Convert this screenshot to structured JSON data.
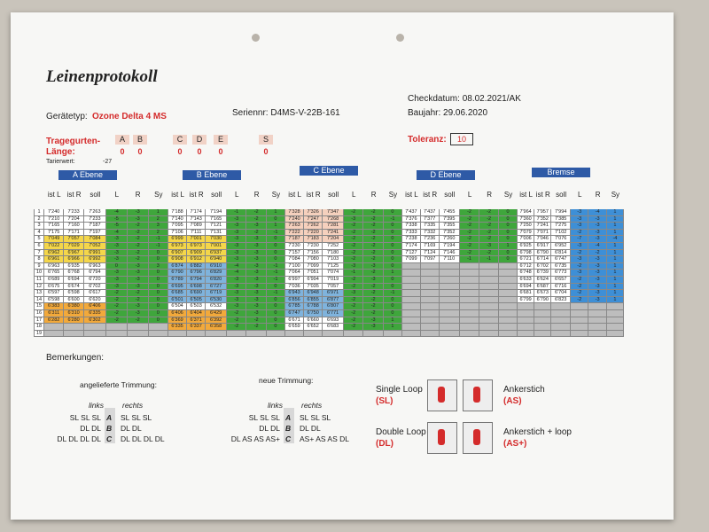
{
  "header": {
    "title": "Leinenprotokoll",
    "checkdatum": "Checkdatum: 08.02.2021/AK",
    "geraetetyp_label": "Gerätetyp:",
    "geraetetyp": "Ozone Delta 4 MS",
    "seriennr": "Seriennr: D4MS-V-22B-161",
    "baujahr": "Baujahr: 29.06.2020"
  },
  "risers": {
    "label1": "Tragegurten-",
    "label2": "Länge:",
    "tarierwert_label": "Tarierwert:",
    "tarierwert": "-27",
    "letters": [
      "A",
      "B",
      "C",
      "D",
      "E",
      "S"
    ],
    "values": [
      "0",
      "0",
      "0",
      "0",
      "0",
      "0"
    ],
    "toleranz_label": "Toleranz:",
    "toleranz": "10"
  },
  "table": {
    "columns": [
      "ist L",
      "ist R",
      "soll",
      "L",
      "R",
      "Sy"
    ],
    "row_numbers": [
      "1",
      "2",
      "3",
      "4",
      "5",
      "6",
      "7",
      "8",
      "9",
      "10",
      "11",
      "12",
      "13",
      "14",
      "15",
      "16",
      "17",
      "18",
      "19"
    ],
    "blocks": [
      {
        "title": "A Ebene",
        "rows": [
          [
            "7'240",
            "7'233",
            "7'263",
            "-4",
            "-3",
            "1"
          ],
          [
            "7'210",
            "7'204",
            "7'233",
            "-5",
            "-3",
            "2"
          ],
          [
            "7'165",
            "7'160",
            "7'187",
            "-5",
            "-2",
            "3"
          ],
          [
            "7'175",
            "7'171",
            "7'197",
            "-4",
            "-2",
            "2"
          ],
          [
            "7'049",
            "7'057",
            "7'084",
            "-3",
            "-2",
            "-1"
          ],
          [
            "7'022",
            "7'029",
            "7'052",
            "-3",
            "-2",
            "-1"
          ],
          [
            "6'962",
            "6'967",
            "6'991",
            "-3",
            "-2",
            "0"
          ],
          [
            "6'961",
            "6'966",
            "6'992",
            "-3",
            "-2",
            "0"
          ],
          [
            "6'963",
            "6'935",
            "6'963",
            "0",
            "-3",
            "3"
          ],
          [
            "6'765",
            "6'768",
            "6'794",
            "-3",
            "-3",
            "0"
          ],
          [
            "6'689",
            "6'694",
            "6'720",
            "-3",
            "-3",
            "0"
          ],
          [
            "6'675",
            "6'674",
            "6'702",
            "-3",
            "-3",
            "0"
          ],
          [
            "6'597",
            "6'598",
            "6'617",
            "-2",
            "-2",
            "0"
          ],
          [
            "6'598",
            "6'600",
            "6'620",
            "-2",
            "-2",
            "0"
          ],
          [
            "6'383",
            "6'380",
            "6'406",
            "-2",
            "-3",
            "0"
          ],
          [
            "6'311",
            "6'310",
            "6'335",
            "-2",
            "-3",
            "0"
          ],
          [
            "6'282",
            "6'280",
            "6'302",
            "-2",
            "-2",
            "0"
          ]
        ]
      },
      {
        "title": "B Ebene",
        "rows": [
          [
            "7'188",
            "7'174",
            "7'194",
            "-1",
            "-2",
            "1"
          ],
          [
            "7'140",
            "7'143",
            "7'165",
            "-3",
            "-2",
            "0"
          ],
          [
            "7'095",
            "7'089",
            "7'121",
            "-3",
            "-3",
            "1"
          ],
          [
            "7'106",
            "7'111",
            "7'131",
            "-3",
            "-2",
            "-1"
          ],
          [
            "6'999",
            "7'001",
            "7'030",
            "-3",
            "-3",
            "0"
          ],
          [
            "6'973",
            "6'973",
            "7'001",
            "-3",
            "-3",
            "0"
          ],
          [
            "6'907",
            "6'909",
            "6'937",
            "-3",
            "-3",
            "0"
          ],
          [
            "6'908",
            "6'912",
            "6'940",
            "-3",
            "-3",
            "0"
          ],
          [
            "6'874",
            "6'882",
            "6'910",
            "-4",
            "-3",
            "-1"
          ],
          [
            "6'790",
            "6'796",
            "6'829",
            "-4",
            "-3",
            "-1"
          ],
          [
            "6'789",
            "6'794",
            "6'820",
            "-3",
            "-3",
            "-1"
          ],
          [
            "6'695",
            "6'698",
            "6'727",
            "-3",
            "-3",
            "0"
          ],
          [
            "6'685",
            "6'690",
            "6'719",
            "-3",
            "-3",
            "-1"
          ],
          [
            "6'501",
            "6'505",
            "6'530",
            "-3",
            "-3",
            "0"
          ],
          [
            "6'504",
            "6'503",
            "6'532",
            "-3",
            "-3",
            "0"
          ],
          [
            "6'406",
            "6'404",
            "6'429",
            "-2",
            "-3",
            "0"
          ],
          [
            "6'369",
            "6'371",
            "6'392",
            "-2",
            "-2",
            "0"
          ],
          [
            "6'335",
            "6'337",
            "6'358",
            "-2",
            "-2",
            "0"
          ]
        ]
      },
      {
        "title": "C Ebene",
        "rows": [
          [
            "7'328",
            "7'326",
            "7'347",
            "-2",
            "-2",
            "0"
          ],
          [
            "7'240",
            "7'247",
            "7'268",
            "-3",
            "-2",
            "-1"
          ],
          [
            "7'263",
            "7'262",
            "7'281",
            "-2",
            "-2",
            "0"
          ],
          [
            "7'222",
            "7'220",
            "7'241",
            "-2",
            "-2",
            "0"
          ],
          [
            "7'187",
            "7'183",
            "7'204",
            "-2",
            "-2",
            "0"
          ],
          [
            "7'230",
            "7'230",
            "7'252",
            "-2",
            "-2",
            "0"
          ],
          [
            "7'157",
            "7'156",
            "7'180",
            "-2",
            "-2",
            "0"
          ],
          [
            "7'084",
            "7'080",
            "7'103",
            "-2",
            "-2",
            "0"
          ],
          [
            "7'100",
            "7'099",
            "7'125",
            "-3",
            "-3",
            "0"
          ],
          [
            "7'064",
            "7'051",
            "7'074",
            "-1",
            "-2",
            "1"
          ],
          [
            "6'997",
            "6'994",
            "7'019",
            "-2",
            "-3",
            "0"
          ],
          [
            "7'036",
            "7'035",
            "7'057",
            "-2",
            "-2",
            "0"
          ],
          [
            "6'943",
            "6'948",
            "6'971",
            "-3",
            "-2",
            "-1"
          ],
          [
            "6'856",
            "6'855",
            "6'877",
            "-2",
            "-2",
            "0"
          ],
          [
            "6'785",
            "6'788",
            "6'807",
            "-2",
            "-2",
            "0"
          ],
          [
            "6'747",
            "6'750",
            "6'771",
            "-2",
            "-2",
            "0"
          ],
          [
            "6'671",
            "6'660",
            "6'693",
            "-2",
            "-3",
            "1"
          ],
          [
            "6'659",
            "6'652",
            "6'683",
            "-2",
            "-3",
            "1"
          ]
        ]
      },
      {
        "title": "D Ebene",
        "rows": [
          [
            "7'437",
            "7'437",
            "7'455",
            "-2",
            "-2",
            "0"
          ],
          [
            "7'376",
            "7'377",
            "7'395",
            "-2",
            "-2",
            "0"
          ],
          [
            "7'338",
            "7'335",
            "7'355",
            "-2",
            "-2",
            "0"
          ],
          [
            "7'333",
            "7'332",
            "7'352",
            "-2",
            "-2",
            "0"
          ],
          [
            "7'238",
            "7'236",
            "7'260",
            "-2",
            "-2",
            "0"
          ],
          [
            "7'174",
            "7'169",
            "7'194",
            "-2",
            "-3",
            "1"
          ],
          [
            "7'127",
            "7'124",
            "7'146",
            "-2",
            "-2",
            "0"
          ],
          [
            "7'099",
            "7'097",
            "7'110",
            "-1",
            "-1",
            "0"
          ]
        ]
      },
      {
        "title": "Bremse",
        "rows": [
          [
            "7'964",
            "7'957",
            "7'994",
            "-3",
            "-4",
            "1"
          ],
          [
            "7'360",
            "7'352",
            "7'385",
            "-3",
            "-3",
            "1"
          ],
          [
            "7'250",
            "7'241",
            "7'275",
            "-3",
            "-3",
            "1"
          ],
          [
            "7'079",
            "7'071",
            "7'102",
            "-2",
            "-3",
            "1"
          ],
          [
            "7'006",
            "7'046",
            "7'076",
            "-7",
            "-3",
            "-4"
          ],
          [
            "6'925",
            "6'917",
            "6'952",
            "-3",
            "-4",
            "1"
          ],
          [
            "6'798",
            "6'790",
            "6'814",
            "-2",
            "-2",
            "1"
          ],
          [
            "6'721",
            "6'714",
            "6'747",
            "-3",
            "-3",
            "1"
          ],
          [
            "6'712",
            "6'702",
            "6'735",
            "-2",
            "-3",
            "1"
          ],
          [
            "6'748",
            "6'739",
            "6'773",
            "-3",
            "-3",
            "1"
          ],
          [
            "6'633",
            "6'624",
            "6'657",
            "-2",
            "-3",
            "1"
          ],
          [
            "6'694",
            "6'687",
            "6'716",
            "-2",
            "-3",
            "1"
          ],
          [
            "6'681",
            "6'673",
            "6'704",
            "-2",
            "-3",
            "1"
          ],
          [
            "6'799",
            "6'790",
            "6'823",
            "-2",
            "-3",
            "1"
          ]
        ]
      }
    ]
  },
  "remarks": "Bemerkungen:",
  "trim": [
    {
      "title": "angelieferte Trimmung:",
      "links": "links",
      "rechts": "rechts",
      "rows": [
        [
          "SL SL SL",
          "A",
          "SL SL SL"
        ],
        [
          "DL DL",
          "B",
          "DL DL"
        ],
        [
          "DL DL DL DL",
          "C",
          "DL DL DL DL"
        ]
      ]
    },
    {
      "title": "neue Trimmung:",
      "links": "links",
      "rechts": "rechts",
      "rows": [
        [
          "SL SL SL",
          "A",
          "SL SL SL"
        ],
        [
          "DL DL",
          "B",
          "DL DL"
        ],
        [
          "DL AS AS AS+",
          "C",
          "AS+ AS AS DL"
        ]
      ]
    }
  ],
  "legend": [
    {
      "name": "Single Loop",
      "code": "(SL)"
    },
    {
      "name": "Ankerstich",
      "code": "(AS)"
    },
    {
      "name": "Double Loop",
      "code": "(DL)"
    },
    {
      "name": "Ankerstich + loop",
      "code": "(AS+)"
    }
  ]
}
